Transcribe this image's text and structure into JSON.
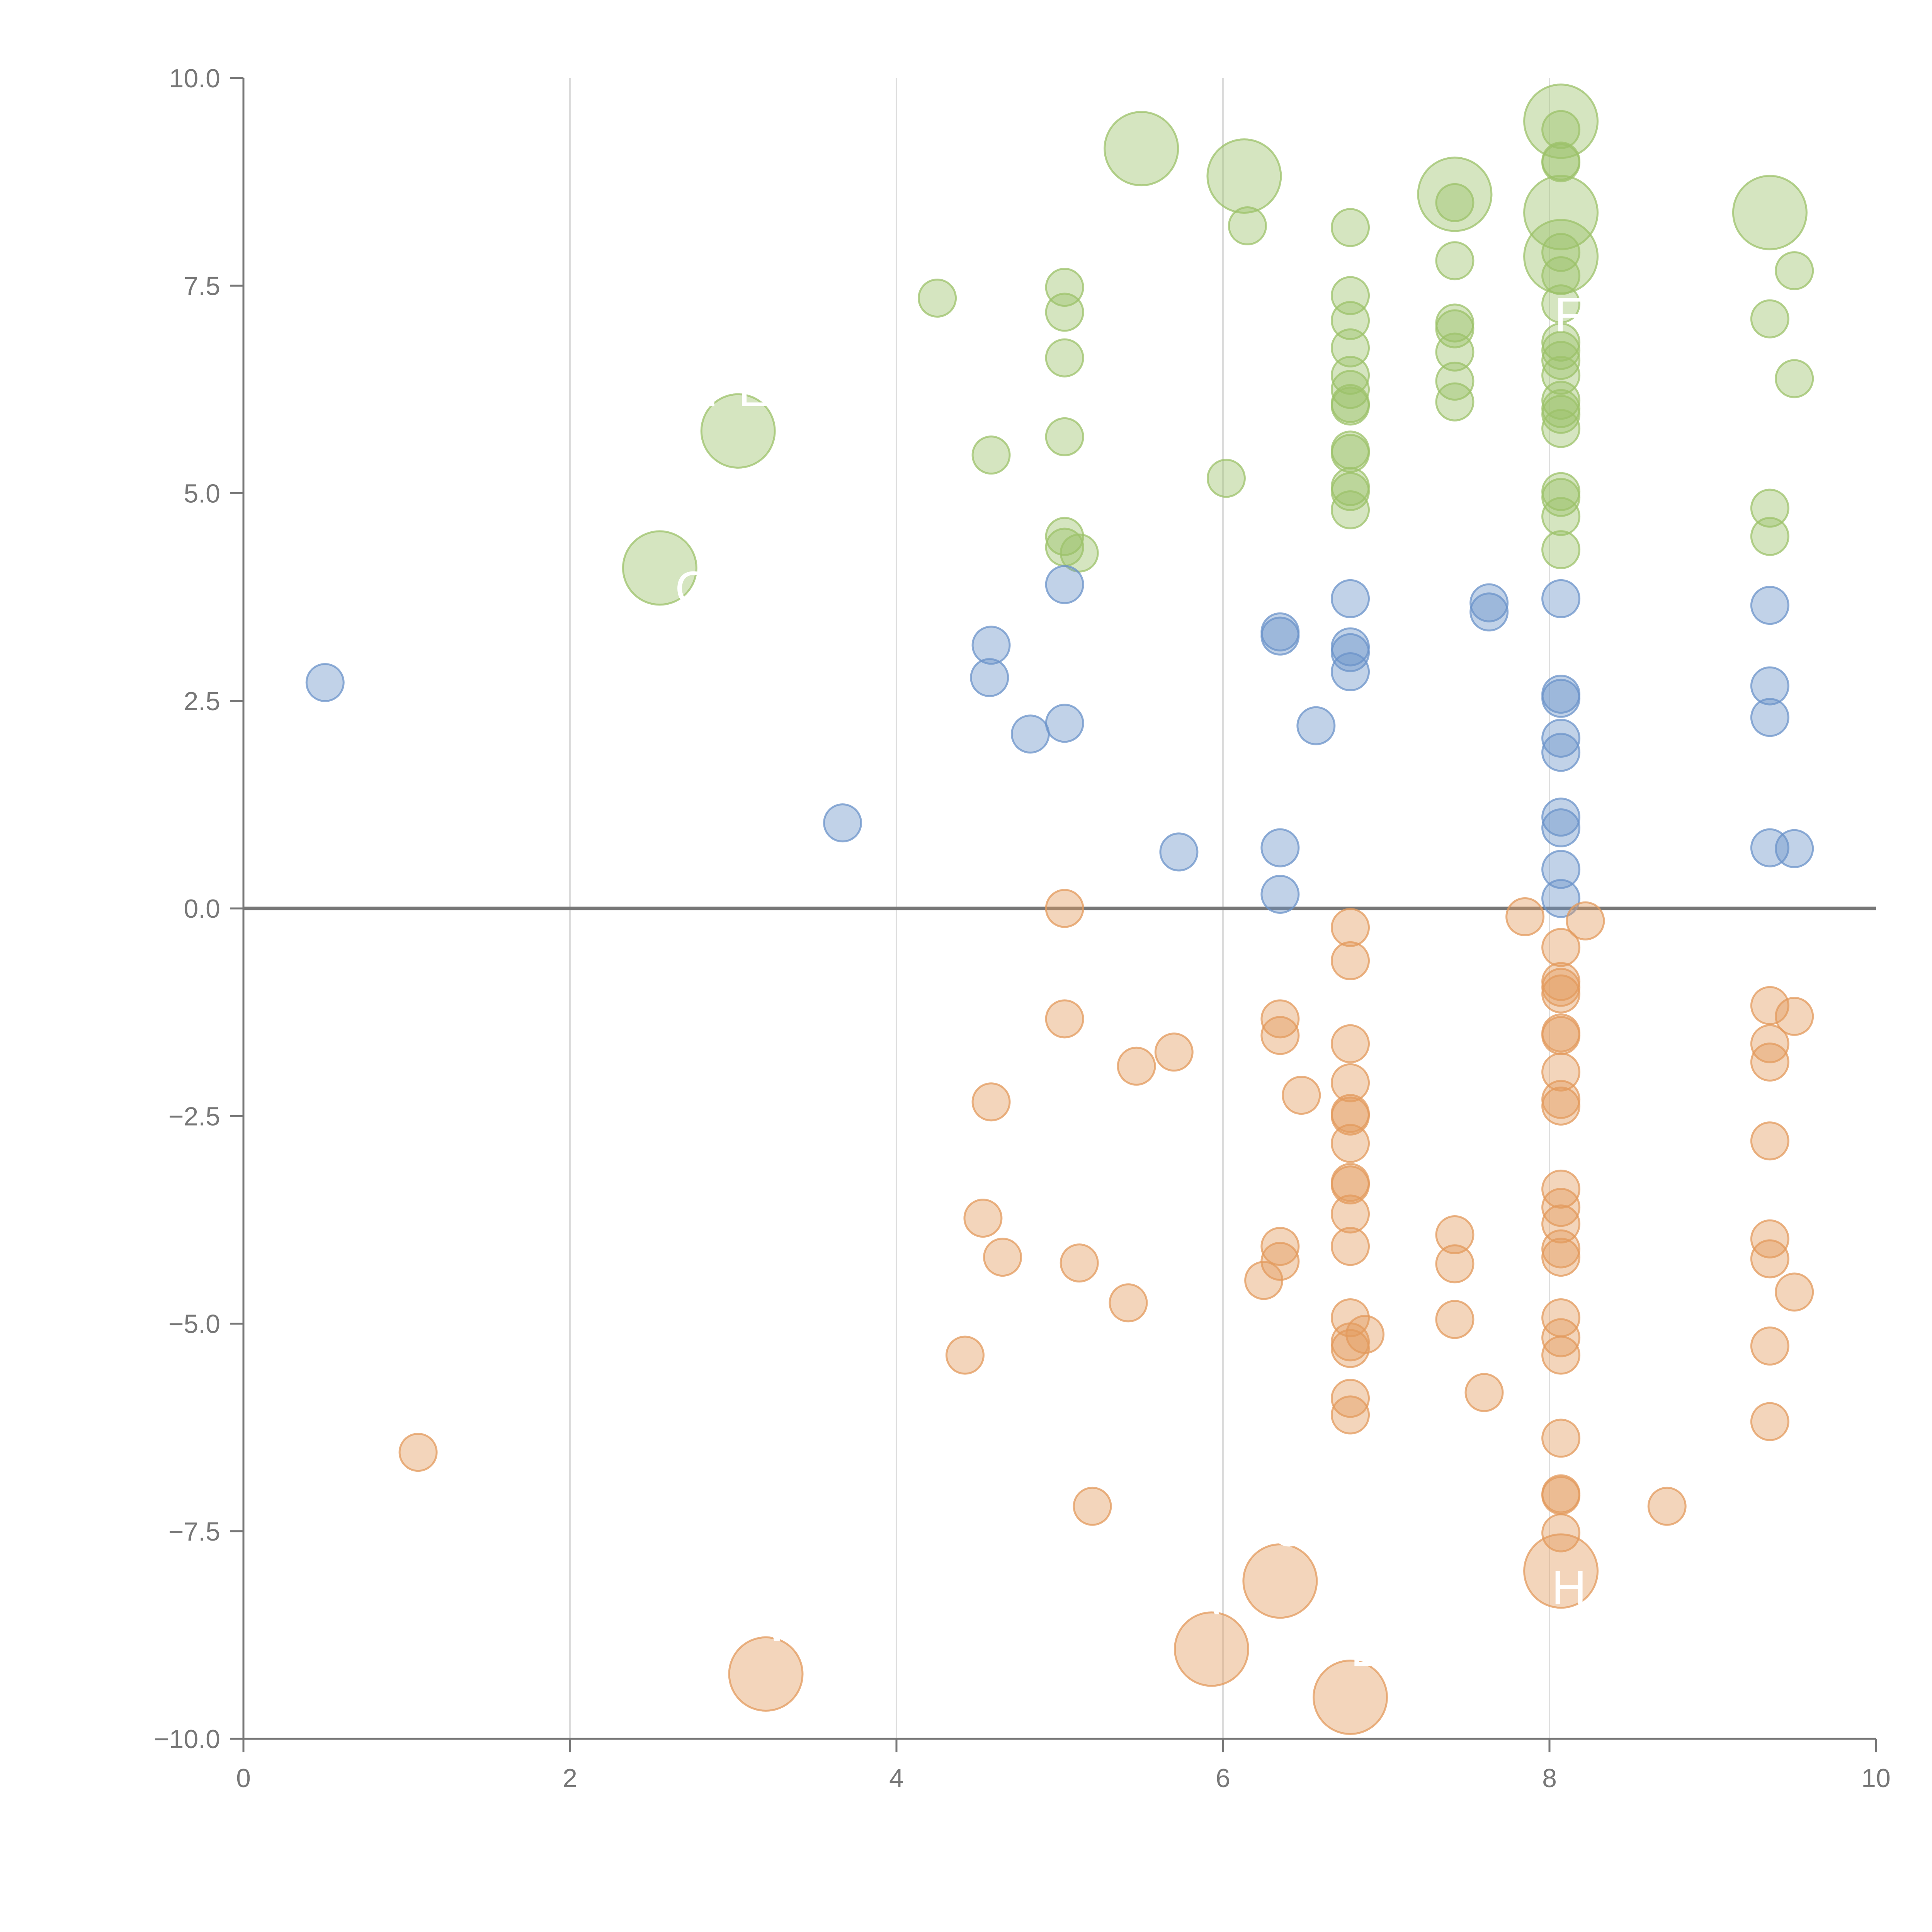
{
  "chart_data": {
    "type": "scatter",
    "title": "",
    "xlabel": "",
    "ylabel": "",
    "xlim": [
      0,
      10
    ],
    "ylim": [
      -10,
      10
    ],
    "xticks": [
      "0",
      "2",
      "4",
      "6",
      "8",
      "10"
    ],
    "yticks": [
      "−10.0",
      "−7.5",
      "−5.0",
      "−2.5",
      "0.0",
      "2.5",
      "5.0",
      "7.5",
      "10.0"
    ],
    "x_gridlines": [
      2,
      4,
      6,
      8
    ],
    "baseline_y": 0,
    "colors": {
      "green": "#9cc26a",
      "blue": "#6b93c9",
      "orange": "#e39a5c",
      "axis": "#777777",
      "grid": "#dcdcdc"
    },
    "series": [
      {
        "name": "green",
        "points": [
          [
            4.25,
            7.35
          ],
          [
            4.58,
            5.46
          ],
          [
            5.03,
            7.48
          ],
          [
            5.03,
            7.18
          ],
          [
            5.03,
            6.63
          ],
          [
            5.03,
            5.68
          ],
          [
            5.03,
            4.48
          ],
          [
            5.03,
            4.35
          ],
          [
            5.12,
            4.28
          ],
          [
            6.15,
            8.22
          ],
          [
            6.02,
            5.18
          ],
          [
            6.78,
            8.2
          ],
          [
            6.78,
            7.38
          ],
          [
            6.78,
            7.08
          ],
          [
            6.78,
            6.75
          ],
          [
            6.78,
            6.42
          ],
          [
            6.78,
            6.25
          ],
          [
            6.78,
            6.08
          ],
          [
            6.78,
            6.05
          ],
          [
            6.78,
            5.52
          ],
          [
            6.78,
            5.48
          ],
          [
            6.78,
            5.08
          ],
          [
            6.78,
            5.02
          ],
          [
            6.78,
            4.8
          ],
          [
            7.42,
            8.5
          ],
          [
            7.42,
            7.8
          ],
          [
            7.42,
            7.05
          ],
          [
            7.42,
            6.98
          ],
          [
            7.42,
            6.7
          ],
          [
            7.42,
            6.35
          ],
          [
            7.42,
            6.1
          ],
          [
            8.07,
            9.38
          ],
          [
            8.07,
            9.0
          ],
          [
            8.07,
            8.98
          ],
          [
            8.07,
            7.9
          ],
          [
            8.07,
            7.62
          ],
          [
            8.07,
            7.28
          ],
          [
            8.07,
            6.82
          ],
          [
            8.07,
            6.72
          ],
          [
            8.07,
            6.6
          ],
          [
            8.07,
            6.42
          ],
          [
            8.07,
            6.12
          ],
          [
            8.07,
            6.02
          ],
          [
            8.07,
            5.95
          ],
          [
            8.07,
            5.78
          ],
          [
            8.07,
            5.02
          ],
          [
            8.07,
            4.95
          ],
          [
            8.07,
            4.72
          ],
          [
            8.07,
            4.32
          ],
          [
            9.35,
            7.1
          ],
          [
            9.35,
            4.82
          ],
          [
            9.35,
            4.48
          ],
          [
            9.5,
            7.68
          ],
          [
            9.5,
            6.38
          ]
        ],
        "big_points": [
          [
            2.55,
            4.1
          ],
          [
            3.03,
            5.75
          ],
          [
            5.5,
            9.15
          ],
          [
            6.13,
            8.82
          ],
          [
            7.42,
            8.6
          ],
          [
            8.07,
            9.48
          ],
          [
            8.07,
            8.38
          ],
          [
            8.07,
            7.85
          ],
          [
            9.35,
            8.38
          ]
        ]
      },
      {
        "name": "blue",
        "points": [
          [
            0.5,
            2.72
          ],
          [
            3.67,
            1.03
          ],
          [
            4.58,
            3.17
          ],
          [
            4.57,
            2.78
          ],
          [
            4.82,
            2.1
          ],
          [
            5.03,
            3.9
          ],
          [
            5.03,
            2.23
          ],
          [
            5.73,
            0.68
          ],
          [
            6.35,
            3.33
          ],
          [
            6.35,
            3.28
          ],
          [
            6.35,
            0.73
          ],
          [
            6.35,
            0.17
          ],
          [
            6.57,
            2.2
          ],
          [
            6.78,
            3.73
          ],
          [
            6.78,
            3.15
          ],
          [
            6.78,
            3.08
          ],
          [
            6.78,
            2.85
          ],
          [
            7.63,
            3.68
          ],
          [
            7.63,
            3.57
          ],
          [
            8.07,
            3.73
          ],
          [
            8.07,
            2.58
          ],
          [
            8.07,
            2.53
          ],
          [
            8.07,
            2.05
          ],
          [
            8.07,
            1.88
          ],
          [
            8.07,
            1.1
          ],
          [
            8.07,
            0.97
          ],
          [
            8.07,
            0.47
          ],
          [
            8.07,
            0.12
          ],
          [
            9.35,
            3.65
          ],
          [
            9.35,
            2.68
          ],
          [
            9.35,
            2.3
          ],
          [
            9.35,
            0.73
          ],
          [
            9.5,
            0.72
          ]
        ],
        "big_points": []
      },
      {
        "name": "orange",
        "points": [
          [
            1.07,
            -6.55
          ],
          [
            4.42,
            -5.38
          ],
          [
            4.53,
            -3.73
          ],
          [
            4.58,
            -2.33
          ],
          [
            4.65,
            -4.2
          ],
          [
            5.03,
            0.0
          ],
          [
            5.03,
            -1.33
          ],
          [
            5.12,
            -4.27
          ],
          [
            5.2,
            -7.2
          ],
          [
            5.42,
            -4.75
          ],
          [
            5.47,
            -1.9
          ],
          [
            5.7,
            -1.73
          ],
          [
            6.25,
            -4.48
          ],
          [
            6.35,
            -1.33
          ],
          [
            6.35,
            -1.53
          ],
          [
            6.35,
            -4.07
          ],
          [
            6.35,
            -4.25
          ],
          [
            6.48,
            -2.25
          ],
          [
            6.78,
            -0.23
          ],
          [
            6.78,
            -0.63
          ],
          [
            6.78,
            -1.63
          ],
          [
            6.78,
            -2.1
          ],
          [
            6.78,
            -2.47
          ],
          [
            6.78,
            -2.5
          ],
          [
            6.78,
            -2.83
          ],
          [
            6.78,
            -3.3
          ],
          [
            6.78,
            -3.33
          ],
          [
            6.78,
            -3.68
          ],
          [
            6.78,
            -4.07
          ],
          [
            6.78,
            -4.93
          ],
          [
            6.78,
            -5.22
          ],
          [
            6.78,
            -5.3
          ],
          [
            6.87,
            -5.13
          ],
          [
            6.78,
            -5.9
          ],
          [
            6.78,
            -6.1
          ],
          [
            7.42,
            -3.93
          ],
          [
            7.42,
            -4.28
          ],
          [
            7.42,
            -4.95
          ],
          [
            7.6,
            -5.83
          ],
          [
            7.85,
            -0.1
          ],
          [
            8.22,
            -0.15
          ],
          [
            8.07,
            -0.47
          ],
          [
            8.07,
            -0.88
          ],
          [
            8.07,
            -0.95
          ],
          [
            8.07,
            -1.03
          ],
          [
            8.07,
            -1.5
          ],
          [
            8.07,
            -1.53
          ],
          [
            8.07,
            -1.97
          ],
          [
            8.07,
            -2.3
          ],
          [
            8.07,
            -2.38
          ],
          [
            8.07,
            -3.38
          ],
          [
            8.07,
            -3.6
          ],
          [
            8.07,
            -3.8
          ],
          [
            8.07,
            -4.1
          ],
          [
            8.07,
            -4.2
          ],
          [
            8.07,
            -4.93
          ],
          [
            8.07,
            -5.17
          ],
          [
            8.07,
            -5.38
          ],
          [
            8.07,
            -6.38
          ],
          [
            8.07,
            -7.05
          ],
          [
            8.07,
            -7.07
          ],
          [
            8.07,
            -7.52
          ],
          [
            8.72,
            -7.2
          ],
          [
            9.35,
            -1.17
          ],
          [
            9.35,
            -1.63
          ],
          [
            9.35,
            -1.85
          ],
          [
            9.35,
            -2.8
          ],
          [
            9.35,
            -3.98
          ],
          [
            9.35,
            -4.22
          ],
          [
            9.35,
            -5.27
          ],
          [
            9.35,
            -6.18
          ],
          [
            9.5,
            -1.3
          ],
          [
            9.5,
            -4.62
          ]
        ],
        "big_points": [
          [
            3.2,
            -9.22
          ],
          [
            5.93,
            -8.92
          ],
          [
            6.35,
            -8.1
          ],
          [
            6.78,
            -9.5
          ],
          [
            8.07,
            -7.98
          ]
        ]
      }
    ],
    "callout_labels": [
      {
        "text": "PE",
        "x": 3.03,
        "y": 6.05
      },
      {
        "text": "C",
        "x": 2.75,
        "y": 3.65
      },
      {
        "text": "F",
        "x": 8.12,
        "y": 6.95
      },
      {
        "text": "C",
        "x": 6.4,
        "y": -7.68
      },
      {
        "text": "H",
        "x": 8.12,
        "y": -8.38
      },
      {
        "text": "W",
        "x": 3.33,
        "y": -8.82
      },
      {
        "text": "E",
        "x": 6.88,
        "y": -9.12
      },
      {
        "text": "A",
        "x": 5.88,
        "y": -8.5
      }
    ]
  }
}
